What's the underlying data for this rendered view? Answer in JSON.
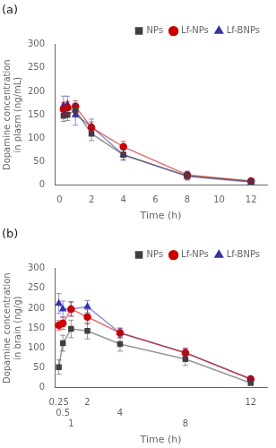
{
  "chart_data": [
    {
      "type": "line",
      "title": "(a)",
      "x_label": "Time (h)",
      "y_label": "Dopamine concentration in plasm (ng/mL)",
      "x": [
        0.25,
        0.5,
        1,
        2,
        4,
        8,
        12
      ],
      "series": [
        {
          "name": "NPs",
          "color": "#404040",
          "marker": "square",
          "values": [
            148,
            150,
            160,
            110,
            65,
            20,
            8
          ],
          "yerr": [
            12,
            12,
            15,
            15,
            10,
            8,
            4
          ]
        },
        {
          "name": "Lf-NPs",
          "color": "#cc0000",
          "marker": "circle",
          "values": [
            162,
            165,
            168,
            123,
            82,
            22,
            9
          ],
          "yerr": [
            14,
            14,
            12,
            12,
            12,
            8,
            3
          ]
        },
        {
          "name": "Lf-BNPs",
          "color": "#3333aa",
          "marker": "triangle",
          "values": [
            170,
            172,
            150,
            125,
            65,
            19,
            7
          ],
          "yerr": [
            20,
            18,
            22,
            16,
            12,
            8,
            3
          ]
        }
      ],
      "xlim": [
        -0.3,
        13
      ],
      "xticks": [
        0,
        2,
        4,
        6,
        8,
        10,
        12
      ],
      "ylim": [
        0,
        300
      ],
      "yticks": [
        0,
        50,
        100,
        150,
        200,
        250,
        300
      ],
      "grid": false,
      "legend": "upper right"
    },
    {
      "type": "line",
      "title": "(b)",
      "x_label": "Time (h)",
      "y_label": "Dopamine concentration in brain (ng/g)",
      "x": [
        0.25,
        0.5,
        1,
        2,
        4,
        8,
        12
      ],
      "series": [
        {
          "name": "NPs",
          "color": "#404040",
          "marker": "square",
          "values": [
            52,
            112,
            148,
            143,
            110,
            72,
            12
          ],
          "yerr": [
            18,
            20,
            22,
            20,
            18,
            16,
            5
          ]
        },
        {
          "name": "Lf-NPs",
          "color": "#cc0000",
          "marker": "circle",
          "values": [
            157,
            162,
            198,
            178,
            138,
            88,
            22
          ],
          "yerr": [
            12,
            15,
            18,
            18,
            12,
            12,
            5
          ]
        },
        {
          "name": "Lf-BNPs",
          "color": "#3333aa",
          "marker": "triangle",
          "values": [
            212,
            198,
            198,
            204,
            138,
            88,
            22
          ],
          "yerr": [
            25,
            20,
            18,
            15,
            12,
            10,
            5
          ]
        }
      ],
      "xlim": [
        0,
        13
      ],
      "xticks": [
        0.25,
        0.5,
        1,
        2,
        4,
        8,
        12
      ],
      "ylim": [
        0,
        300
      ],
      "yticks": [
        0,
        50,
        100,
        150,
        200,
        250,
        300
      ],
      "grid": false,
      "legend": "upper right"
    }
  ]
}
